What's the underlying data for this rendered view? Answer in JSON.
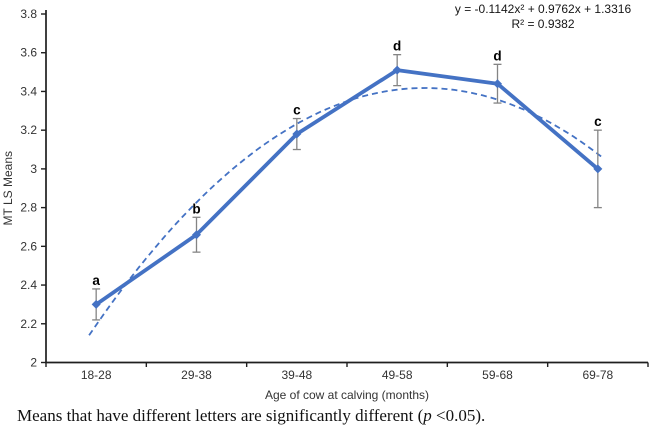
{
  "equation": {
    "line1": "y = -0.1142x² + 0.9762x + 1.3316",
    "line2": "R² = 0.9382"
  },
  "caption": {
    "prefix": "Means that have different letters are significantly different (",
    "italic_p": "p",
    "suffix": " <0.05)."
  },
  "chart_data": {
    "type": "line",
    "categories": [
      "18-28",
      "29-38",
      "39-48",
      "49-58",
      "59-68",
      "69-78"
    ],
    "series": [
      {
        "name": "MT LS Means",
        "values": [
          2.3,
          2.66,
          3.18,
          3.51,
          3.44,
          3.0
        ],
        "errors": [
          0.08,
          0.09,
          0.08,
          0.08,
          0.1,
          0.2
        ],
        "point_labels": [
          "a",
          "b",
          "c",
          "d",
          "d",
          "c"
        ],
        "color": "#4472C4",
        "style": "solid-with-diamond-markers"
      },
      {
        "name": "Polynomial trendline",
        "coeffs": {
          "a": -0.1142,
          "b": 0.9762,
          "c": 1.3316
        },
        "r_squared": 0.9382,
        "color": "#4472C4",
        "style": "dashed"
      }
    ],
    "xlabel": "Age of cow at calving (months)",
    "ylabel": "MT LS Means",
    "ylim": [
      2.0,
      3.8
    ],
    "ytick_step": 0.2,
    "yticks": [
      {
        "value": 2.0,
        "label": "2"
      },
      {
        "value": 2.2,
        "label": "2.2"
      },
      {
        "value": 2.4,
        "label": "2.4"
      },
      {
        "value": 2.6,
        "label": "2.6"
      },
      {
        "value": 2.8,
        "label": "2.8"
      },
      {
        "value": 3.0,
        "label": "3"
      },
      {
        "value": 3.2,
        "label": "3.2"
      },
      {
        "value": 3.4,
        "label": "3.4"
      },
      {
        "value": 3.6,
        "label": "3.6"
      },
      {
        "value": 3.8,
        "label": "3.8"
      }
    ],
    "grid": false,
    "legend": "none",
    "error_bar_color": "#848484",
    "axis_color": "#1f1f1f",
    "tick_text_color": "#333333"
  }
}
